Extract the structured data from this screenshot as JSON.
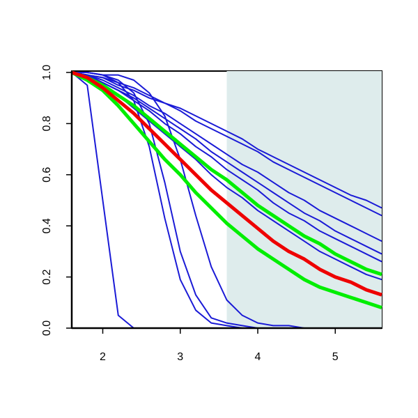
{
  "chart_data": {
    "type": "line",
    "x": [
      1.6,
      1.8,
      2.0,
      2.2,
      2.4,
      2.6,
      2.8,
      3.0,
      3.2,
      3.4,
      3.6,
      3.8,
      4.0,
      4.2,
      4.4,
      4.6,
      4.8,
      5.0,
      5.2,
      5.4,
      5.6
    ],
    "series": [
      {
        "color": "#1a1ad6",
        "values": [
          1,
          0.99,
          0.98,
          0.96,
          0.94,
          0.91,
          0.88,
          0.86,
          0.83,
          0.8,
          0.77,
          0.74,
          0.7,
          0.67,
          0.64,
          0.61,
          0.58,
          0.55,
          0.52,
          0.5,
          0.47
        ]
      },
      {
        "color": "#1a1ad6",
        "values": [
          1,
          0.99,
          0.98,
          0.95,
          0.93,
          0.9,
          0.88,
          0.85,
          0.81,
          0.78,
          0.75,
          0.72,
          0.69,
          0.65,
          0.62,
          0.59,
          0.56,
          0.53,
          0.5,
          0.47,
          0.44
        ]
      },
      {
        "color": "#1a1ad6",
        "values": [
          1,
          0.99,
          0.97,
          0.94,
          0.91,
          0.87,
          0.84,
          0.8,
          0.76,
          0.72,
          0.68,
          0.64,
          0.61,
          0.57,
          0.53,
          0.5,
          0.46,
          0.43,
          0.4,
          0.37,
          0.34
        ]
      },
      {
        "color": "#1a1ad6",
        "values": [
          1,
          0.99,
          0.96,
          0.93,
          0.9,
          0.86,
          0.82,
          0.78,
          0.74,
          0.69,
          0.65,
          0.61,
          0.57,
          0.53,
          0.49,
          0.45,
          0.42,
          0.38,
          0.35,
          0.32,
          0.29
        ]
      },
      {
        "color": "#1a1ad6",
        "values": [
          1,
          0.99,
          0.96,
          0.93,
          0.89,
          0.85,
          0.8,
          0.76,
          0.71,
          0.67,
          0.62,
          0.58,
          0.54,
          0.49,
          0.45,
          0.42,
          0.38,
          0.35,
          0.32,
          0.29,
          0.26
        ]
      },
      {
        "color": "#1a1ad6",
        "values": [
          1,
          0.98,
          0.95,
          0.91,
          0.86,
          0.81,
          0.76,
          0.71,
          0.66,
          0.6,
          0.55,
          0.51,
          0.46,
          0.42,
          0.38,
          0.34,
          0.3,
          0.27,
          0.24,
          0.21,
          0.19
        ]
      },
      {
        "color": "#1a1ad6",
        "values": [
          1,
          0.95,
          0.5,
          0.05,
          0,
          0,
          0,
          0,
          0,
          0,
          0,
          0,
          0,
          0,
          0,
          0,
          0,
          0,
          0,
          0,
          0
        ]
      },
      {
        "color": "#1a1ad6",
        "values": [
          1,
          1,
          0.99,
          0.96,
          0.89,
          0.71,
          0.43,
          0.19,
          0.07,
          0.02,
          0.01,
          0,
          0,
          0,
          0,
          0,
          0,
          0,
          0,
          0,
          0
        ]
      },
      {
        "color": "#1a1ad6",
        "values": [
          1,
          1,
          0.99,
          0.97,
          0.92,
          0.8,
          0.57,
          0.3,
          0.13,
          0.04,
          0.02,
          0.01,
          0,
          0,
          0,
          0,
          0,
          0,
          0,
          0,
          0
        ]
      },
      {
        "color": "#1a1ad6",
        "values": [
          1,
          1,
          0.99,
          0.99,
          0.97,
          0.92,
          0.83,
          0.66,
          0.44,
          0.24,
          0.11,
          0.05,
          0.02,
          0.01,
          0.01,
          0,
          0,
          0,
          0,
          0,
          0
        ]
      },
      {
        "color": "#00ee00",
        "values": [
          1,
          0.98,
          0.95,
          0.91,
          0.87,
          0.82,
          0.77,
          0.72,
          0.67,
          0.62,
          0.58,
          0.53,
          0.48,
          0.44,
          0.4,
          0.36,
          0.33,
          0.29,
          0.26,
          0.23,
          0.21
        ]
      },
      {
        "color": "#00ee00",
        "values": [
          1,
          0.97,
          0.93,
          0.87,
          0.8,
          0.73,
          0.66,
          0.6,
          0.53,
          0.47,
          0.41,
          0.36,
          0.31,
          0.27,
          0.23,
          0.19,
          0.16,
          0.14,
          0.12,
          0.1,
          0.08
        ]
      },
      {
        "color": "#ee0000",
        "values": [
          1,
          0.98,
          0.94,
          0.89,
          0.84,
          0.78,
          0.72,
          0.66,
          0.6,
          0.54,
          0.49,
          0.44,
          0.39,
          0.34,
          0.3,
          0.27,
          0.23,
          0.2,
          0.18,
          0.15,
          0.13
        ]
      }
    ],
    "shaded_region": [
      3.6,
      5.6
    ],
    "shaded_color": "#deecec",
    "xlim": [
      1.6,
      5.6
    ],
    "xticks": [
      2,
      3,
      4,
      5
    ],
    "ylim": [
      0,
      1
    ],
    "yticks": [
      {
        "value": 0,
        "label": "0.0"
      },
      0.2,
      0.4,
      0.6,
      0.8,
      {
        "value": 1,
        "label": "1.0"
      }
    ]
  }
}
